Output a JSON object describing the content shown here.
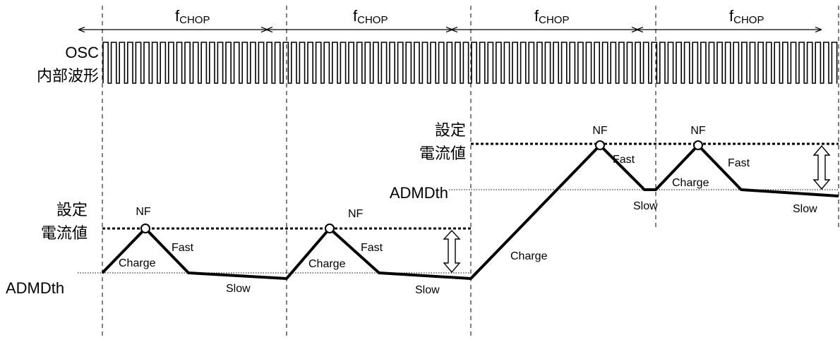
{
  "chop": {
    "f_label": "f",
    "sub_label": "CHOP",
    "count": 4
  },
  "osc": {
    "line1": "OSC",
    "line2": "内部波形"
  },
  "left_level": {
    "setting_line1": "設定",
    "setting_line2": "電流値",
    "threshold": "ADMDth"
  },
  "right_level": {
    "setting_line1": "設定",
    "setting_line2": "電流値",
    "threshold": "ADMDth"
  },
  "phases": {
    "nf": "NF",
    "fast": "Fast",
    "charge": "Charge",
    "slow": "Slow"
  }
}
